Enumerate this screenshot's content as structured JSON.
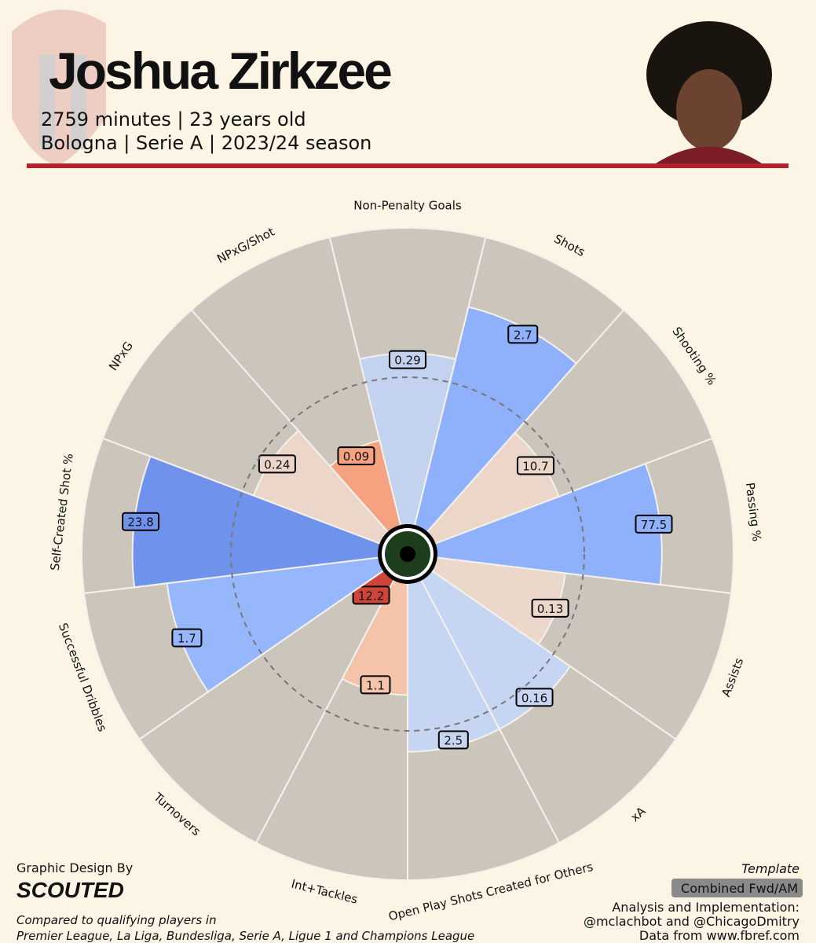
{
  "header": {
    "title": "Joshua Zirkzee",
    "subtitle": [
      "2759 minutes | 23 years old",
      "Bologna | Serie A | 2023/24 season"
    ]
  },
  "chart_data": {
    "type": "pizza",
    "categories": [
      "Non-Penalty Goals",
      "Shots",
      "Shooting %",
      "Passing %",
      "Assists",
      "xA",
      "Open Play Shots Created for Others",
      "Int+Tackles",
      "Turnovers",
      "Successful Dribbles",
      "Self-Created Shot %",
      "NPxG",
      "NPxG/Shot"
    ],
    "values": [
      0.29,
      2.7,
      10.7,
      77.5,
      0.13,
      0.16,
      2.5,
      1.1,
      12.2,
      1.7,
      23.8,
      0.24,
      0.09
    ],
    "percentiles": [
      58,
      76,
      45,
      76,
      44,
      57,
      57,
      38,
      9,
      72,
      83,
      46,
      30
    ],
    "colors": [
      "#c3d3ef",
      "#8fb0fa",
      "#ecd6ca",
      "#8fb0fa",
      "#ebd8cb",
      "#c6d6f2",
      "#c6d6f2",
      "#f3c3aa",
      "#d0453a",
      "#96b7fb",
      "#6f93ec",
      "#ecd6ca",
      "#f4a27f"
    ],
    "rlim": [
      0,
      100
    ],
    "reference_line": 50
  },
  "footer": {
    "credit": "Graphic Design By",
    "brand": "SCOUTED",
    "note": [
      "Compared to qualifying players in",
      "Premier League, La Liga, Bundesliga, Serie A, Ligue 1 and Champions League"
    ],
    "template_label": "Template",
    "template": "Combined Fwd/AM",
    "analysis": [
      "Analysis and Implementation:",
      "@mclachbot and @ChicagoDmitry",
      "Data from www.fbref.com"
    ]
  }
}
